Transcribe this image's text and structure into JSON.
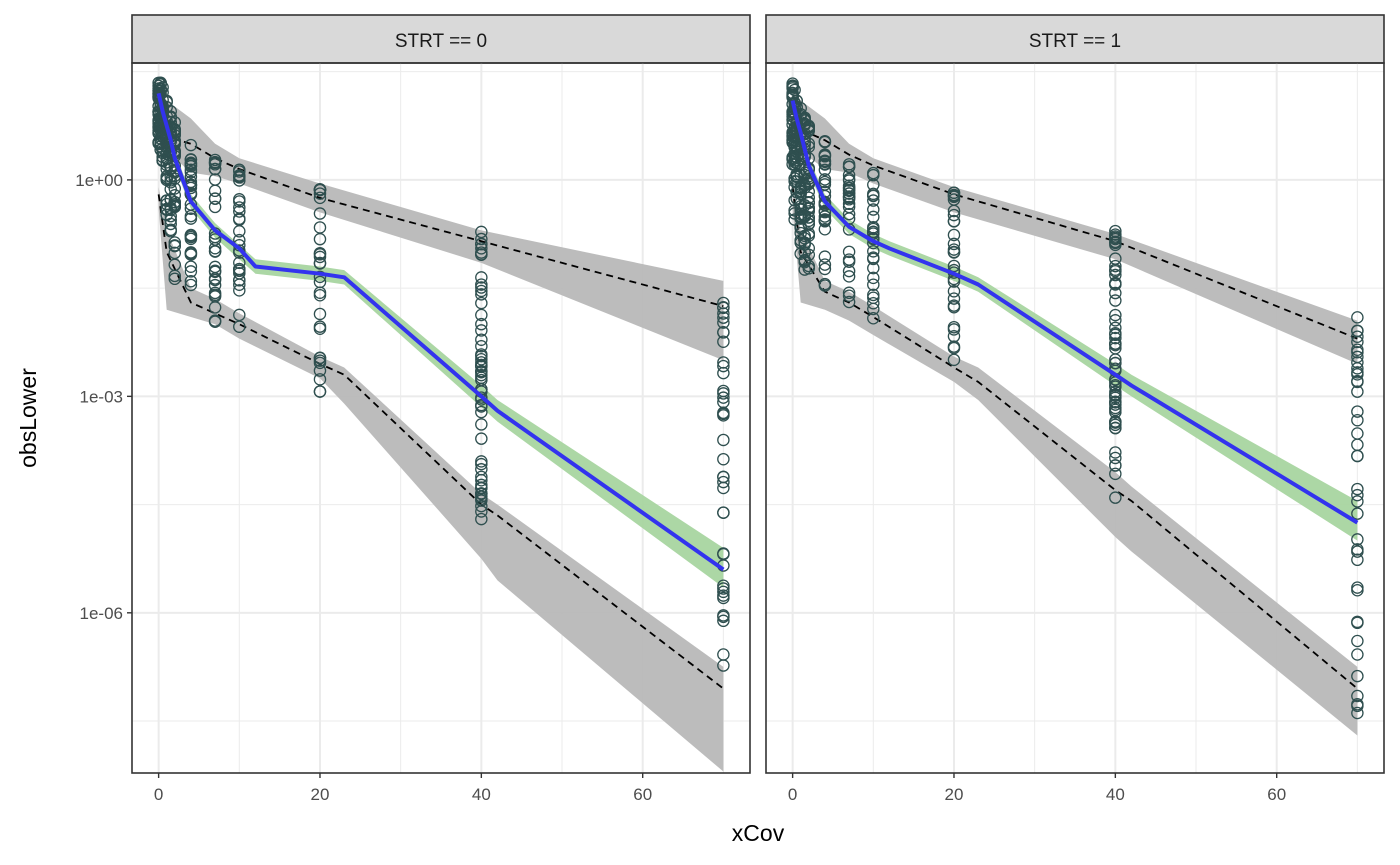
{
  "chart_data": {
    "type": "scatter",
    "xlabel": "xCov",
    "ylabel": "obsLower",
    "y_scale": "log10",
    "xlim": [
      -3.3,
      73.3
    ],
    "ylim_log10": [
      -8.22,
      1.62
    ],
    "x_ticks": [
      0,
      20,
      40,
      60
    ],
    "x_minor_ticks": [
      10,
      30,
      50,
      70
    ],
    "y_ticks": [
      {
        "log10": 0,
        "label": "1e+00"
      },
      {
        "log10": -3,
        "label": "1e-03"
      },
      {
        "log10": -6,
        "label": "1e-06"
      }
    ],
    "y_minor_ticks_log10": [
      1.5,
      -1.5,
      -4.5,
      -7.5
    ],
    "grid": true,
    "colors": {
      "points": "#2f4f4f",
      "median_line": "#3333ee",
      "median_band": "#a8d5a0",
      "pi_band": "#b8b8b8",
      "pi_line": "#000000",
      "strip_bg": "#d9d9d9",
      "panel_border": "#333333",
      "grid": "#ebebeb"
    },
    "panels": [
      {
        "strip_label": "STRT == 0",
        "observations": [
          {
            "x": 0.0,
            "y_range_log10": [
              0.4,
              1.4
            ],
            "n": 28
          },
          {
            "x": 0.25,
            "y_range_log10": [
              0.3,
              1.35
            ],
            "n": 28
          },
          {
            "x": 0.5,
            "y_range_log10": [
              0.2,
              1.3
            ],
            "n": 28
          },
          {
            "x": 1.0,
            "y_range_log10": [
              -0.5,
              1.1
            ],
            "n": 34
          },
          {
            "x": 1.5,
            "y_range_log10": [
              -0.9,
              0.95
            ],
            "n": 34
          },
          {
            "x": 2.0,
            "y_range_log10": [
              -1.4,
              0.8
            ],
            "n": 36
          },
          {
            "x": 4.0,
            "y_range_log10": [
              -1.7,
              0.6
            ],
            "n": 34
          },
          {
            "x": 7.0,
            "y_range_log10": [
              -2.0,
              0.35
            ],
            "n": 30
          },
          {
            "x": 10.0,
            "y_range_log10": [
              -2.05,
              0.2
            ],
            "n": 28
          },
          {
            "x": 20.0,
            "y_range_log10": [
              -2.95,
              -0.1
            ],
            "n": 30
          },
          {
            "x": 40.0,
            "y_range_log10": [
              -4.8,
              -0.65
            ],
            "n": 60
          },
          {
            "x": 70.0,
            "y_range_log10": [
              -7.5,
              -1.6
            ],
            "n": 40
          }
        ],
        "observed_median": {
          "x": [
            0,
            0.5,
            1,
            1.5,
            2,
            4,
            7,
            10,
            12,
            20,
            23,
            40,
            42,
            70
          ],
          "y_log10": [
            1.2,
            0.95,
            0.75,
            0.55,
            0.3,
            -0.3,
            -0.7,
            -0.95,
            -1.2,
            -1.3,
            -1.35,
            -3.0,
            -3.2,
            -5.4
          ]
        },
        "median_band": {
          "x": [
            0,
            1,
            2,
            4,
            7,
            10,
            12,
            20,
            23,
            40,
            42,
            70
          ],
          "upper_log10": [
            1.25,
            0.85,
            0.4,
            -0.2,
            -0.6,
            -0.9,
            -1.1,
            -1.2,
            -1.25,
            -2.85,
            -3.05,
            -5.1
          ],
          "lower_log10": [
            1.15,
            0.65,
            0.2,
            -0.4,
            -0.8,
            -1.1,
            -1.3,
            -1.4,
            -1.45,
            -3.15,
            -3.35,
            -5.65
          ]
        },
        "pi_upper_line": {
          "x": [
            0,
            1,
            4,
            7,
            10,
            20,
            40,
            70
          ],
          "y_log10": [
            1.0,
            0.6,
            0.5,
            0.3,
            0.15,
            -0.25,
            -0.85,
            -1.75
          ]
        },
        "pi_upper_band": {
          "x": [
            0,
            1,
            4,
            7,
            10,
            20,
            40,
            70
          ],
          "upper_log10": [
            1.3,
            1.1,
            0.85,
            0.5,
            0.3,
            -0.05,
            -0.7,
            -1.4
          ],
          "lower_log10": [
            0.6,
            0.4,
            0.1,
            0.05,
            -0.05,
            -0.45,
            -1.15,
            -2.5
          ]
        },
        "pi_lower_line": {
          "x": [
            0,
            1,
            4,
            7,
            10,
            20,
            23,
            40,
            42,
            70
          ],
          "y_log10": [
            -0.2,
            -1.0,
            -1.7,
            -1.85,
            -2.0,
            -2.55,
            -2.7,
            -4.5,
            -4.65,
            -7.05
          ]
        },
        "pi_lower_band": {
          "x": [
            0,
            1,
            4,
            7,
            10,
            20,
            23,
            40,
            42,
            70
          ],
          "upper_log10": [
            -0.1,
            -0.7,
            -1.5,
            -1.65,
            -1.85,
            -2.45,
            -2.6,
            -4.35,
            -4.5,
            -6.75
          ],
          "lower_log10": [
            -0.4,
            -1.8,
            -1.9,
            -2.0,
            -2.2,
            -2.75,
            -3.1,
            -5.25,
            -5.55,
            -8.2
          ]
        }
      },
      {
        "strip_label": "STRT == 1",
        "observations": [
          {
            "x": 0.0,
            "y_range_log10": [
              0.1,
              1.35
            ],
            "n": 28
          },
          {
            "x": 0.25,
            "y_range_log10": [
              -0.6,
              1.25
            ],
            "n": 28
          },
          {
            "x": 0.5,
            "y_range_log10": [
              -0.3,
              1.2
            ],
            "n": 28
          },
          {
            "x": 1.0,
            "y_range_log10": [
              -1.2,
              1.0
            ],
            "n": 34
          },
          {
            "x": 1.5,
            "y_range_log10": [
              -1.3,
              0.9
            ],
            "n": 34
          },
          {
            "x": 2.0,
            "y_range_log10": [
              -1.4,
              0.75
            ],
            "n": 34
          },
          {
            "x": 4.0,
            "y_range_log10": [
              -1.55,
              0.55
            ],
            "n": 32
          },
          {
            "x": 7.0,
            "y_range_log10": [
              -1.75,
              0.3
            ],
            "n": 30
          },
          {
            "x": 10.0,
            "y_range_log10": [
              -1.95,
              0.2
            ],
            "n": 28
          },
          {
            "x": 20.0,
            "y_range_log10": [
              -2.95,
              -0.15
            ],
            "n": 30
          },
          {
            "x": 40.0,
            "y_range_log10": [
              -4.5,
              -0.65
            ],
            "n": 60
          },
          {
            "x": 70.0,
            "y_range_log10": [
              -7.45,
              -1.85
            ],
            "n": 40
          }
        ],
        "observed_median": {
          "x": [
            0,
            0.5,
            1,
            2,
            4,
            7,
            10,
            12,
            20,
            23,
            40,
            42,
            70
          ],
          "y_log10": [
            1.1,
            0.85,
            0.65,
            0.2,
            -0.3,
            -0.65,
            -0.85,
            -0.95,
            -1.3,
            -1.45,
            -2.7,
            -2.85,
            -4.75
          ]
        },
        "median_band": {
          "x": [
            0,
            1,
            2,
            4,
            7,
            10,
            12,
            20,
            23,
            40,
            42,
            70
          ],
          "upper_log10": [
            1.15,
            0.75,
            0.3,
            -0.2,
            -0.55,
            -0.75,
            -0.85,
            -1.2,
            -1.35,
            -2.55,
            -2.7,
            -4.45
          ],
          "lower_log10": [
            1.05,
            0.55,
            0.1,
            -0.4,
            -0.75,
            -0.95,
            -1.05,
            -1.4,
            -1.55,
            -2.85,
            -3.0,
            -5.0
          ]
        },
        "pi_upper_line": {
          "x": [
            0,
            1,
            4,
            7,
            10,
            20,
            40,
            70
          ],
          "y_log10": [
            1.0,
            0.7,
            0.55,
            0.35,
            0.2,
            -0.2,
            -0.85,
            -2.2
          ]
        },
        "pi_upper_band": {
          "x": [
            0,
            1,
            4,
            7,
            10,
            20,
            40,
            70
          ],
          "upper_log10": [
            1.3,
            1.1,
            0.85,
            0.5,
            0.3,
            -0.1,
            -0.75,
            -1.95
          ],
          "lower_log10": [
            0.6,
            0.4,
            0.15,
            0.1,
            -0.05,
            -0.45,
            -1.1,
            -2.55
          ]
        },
        "pi_lower_line": {
          "x": [
            0,
            1,
            4,
            7,
            10,
            20,
            23,
            40,
            42,
            70
          ],
          "y_log10": [
            -0.1,
            -1.0,
            -1.55,
            -1.7,
            -1.9,
            -2.6,
            -2.8,
            -4.3,
            -4.45,
            -7.05
          ]
        },
        "pi_lower_band": {
          "x": [
            0,
            1,
            4,
            7,
            10,
            20,
            23,
            40,
            42,
            70
          ],
          "upper_log10": [
            0.0,
            -0.7,
            -1.4,
            -1.55,
            -1.75,
            -2.45,
            -2.6,
            -4.05,
            -4.25,
            -6.75
          ],
          "lower_log10": [
            -0.4,
            -1.7,
            -1.8,
            -1.95,
            -2.15,
            -2.8,
            -3.05,
            -4.95,
            -5.15,
            -7.7
          ]
        }
      }
    ]
  }
}
